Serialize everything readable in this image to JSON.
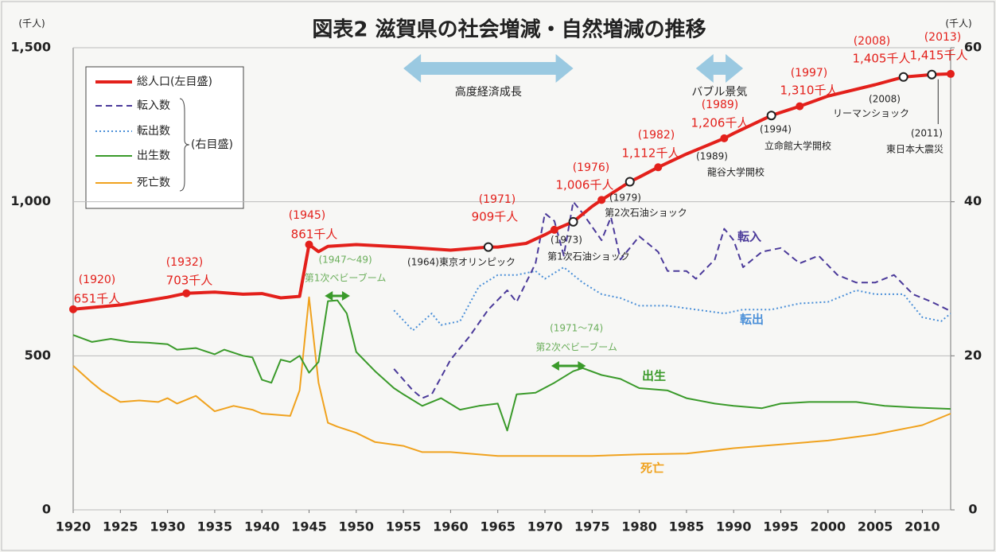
{
  "chart_data": {
    "type": "line",
    "title": "図表2 滋賀県の社会増減・自然増減の推移",
    "ylabel": "(千人)",
    "y2label": "(千人)",
    "xlim": [
      1920,
      2013
    ],
    "xticks": [
      1920,
      1925,
      1930,
      1935,
      1940,
      1945,
      1950,
      1955,
      1960,
      1965,
      1970,
      1975,
      1980,
      1985,
      1990,
      1995,
      2000,
      2005,
      2010
    ],
    "ylim": [
      0,
      1500
    ],
    "yticks": [
      0,
      500,
      {
        "value": 1000,
        "label": "1,000"
      },
      {
        "value": 1500,
        "label": "1,500"
      }
    ],
    "y2lim": [
      0,
      60
    ],
    "y2ticks": [
      0,
      20,
      40,
      60
    ],
    "grid": true,
    "legend": "top-left",
    "right_axis_note": "(右目盛)",
    "series": [
      {
        "name": "総人口(左目盛)",
        "color": "#e3201b",
        "dash": "solid",
        "axis": "y",
        "x": [
          1920,
          1925,
          1930,
          1932,
          1935,
          1938,
          1940,
          1942,
          1944,
          1945,
          1946,
          1947,
          1950,
          1955,
          1960,
          1964,
          1965,
          1968,
          1970,
          1971,
          1973,
          1975,
          1976,
          1979,
          1980,
          1982,
          1985,
          1989,
          1990,
          1994,
          1995,
          1997,
          2000,
          2005,
          2008,
          2010,
          2011,
          2013
        ],
        "values": [
          651,
          665,
          690,
          703,
          707,
          700,
          702,
          688,
          693,
          861,
          838,
          855,
          861,
          853,
          843,
          853,
          853,
          865,
          893,
          909,
          935,
          985,
          1006,
          1065,
          1080,
          1112,
          1155,
          1206,
          1222,
          1280,
          1290,
          1310,
          1343,
          1380,
          1405,
          1410,
          1413,
          1415
        ],
        "value_labels": [
          "651千人",
          null,
          null,
          "703千人",
          null,
          null,
          null,
          null,
          null,
          "861千人",
          null,
          null,
          null,
          null,
          null,
          null,
          null,
          null,
          null,
          "909千人",
          null,
          null,
          "1,006千人",
          null,
          null,
          "1,112千人",
          null,
          "1,206千人",
          null,
          null,
          null,
          "1,310千人",
          null,
          null,
          "1,405千人",
          null,
          null,
          "1,415千人"
        ],
        "year_labels": [
          "(1920)",
          null,
          null,
          "(1932)",
          null,
          null,
          null,
          null,
          null,
          "(1945)",
          null,
          null,
          null,
          null,
          null,
          null,
          null,
          null,
          null,
          "(1971)",
          null,
          null,
          "(1976)",
          null,
          null,
          "(1982)",
          null,
          "(1989)",
          null,
          null,
          null,
          "(1997)",
          null,
          null,
          "(2008)",
          null,
          null,
          "(2013)"
        ]
      },
      {
        "name": "転入数",
        "inline_label": "転入",
        "color": "#4b3a9a",
        "dash": "dashed",
        "axis": "y2",
        "x": [
          1954,
          1956,
          1957,
          1958,
          1960,
          1962,
          1964,
          1966,
          1967,
          1969,
          1970,
          1971,
          1972,
          1973,
          1974,
          1976,
          1977,
          1978,
          1980,
          1982,
          1983,
          1985,
          1986,
          1988,
          1989,
          1990,
          1991,
          1993,
          1995,
          1997,
          1999,
          2001,
          2003,
          2005,
          2007,
          2009,
          2011,
          2013
        ],
        "values": [
          18.3,
          15.5,
          14.5,
          15.0,
          19.5,
          22.5,
          26.0,
          28.5,
          27.0,
          32.0,
          38.5,
          37.5,
          33.0,
          40.0,
          38.5,
          35.0,
          38.0,
          32.5,
          35.5,
          33.5,
          31.0,
          31.0,
          30.0,
          32.5,
          36.5,
          35.0,
          31.5,
          33.5,
          34.0,
          32.0,
          33.0,
          30.5,
          29.5,
          29.5,
          30.5,
          28.0,
          27.0,
          25.8
        ]
      },
      {
        "name": "転出数",
        "inline_label": "転出",
        "color": "#4a8fd8",
        "dash": "dotted",
        "axis": "y2",
        "x": [
          1954,
          1956,
          1958,
          1959,
          1961,
          1963,
          1965,
          1967,
          1969,
          1970,
          1972,
          1974,
          1976,
          1978,
          1980,
          1983,
          1986,
          1989,
          1991,
          1994,
          1997,
          2000,
          2003,
          2005,
          2008,
          2010,
          2012,
          2013
        ],
        "values": [
          25.9,
          23.3,
          25.5,
          24.0,
          24.5,
          29.0,
          30.5,
          30.5,
          31.0,
          30.0,
          31.5,
          29.5,
          28.0,
          27.5,
          26.5,
          26.5,
          26.0,
          25.5,
          26.0,
          26.0,
          26.8,
          27.0,
          28.5,
          28.0,
          28.0,
          25.0,
          24.5,
          25.5
        ]
      },
      {
        "name": "出生数",
        "inline_label": "出生",
        "color": "#3a9a2a",
        "dash": "solid",
        "axis": "y2",
        "x": [
          1920,
          1922,
          1924,
          1926,
          1928,
          1930,
          1931,
          1933,
          1935,
          1936,
          1938,
          1939,
          1940,
          1941,
          1942,
          1943,
          1944,
          1945,
          1946,
          1947,
          1948,
          1949,
          1950,
          1952,
          1954,
          1955,
          1957,
          1959,
          1961,
          1963,
          1965,
          1966,
          1967,
          1969,
          1971,
          1973,
          1974,
          1976,
          1978,
          1980,
          1983,
          1985,
          1988,
          1990,
          1993,
          1995,
          1998,
          2000,
          2003,
          2006,
          2009,
          2013
        ],
        "values": [
          22.7,
          21.8,
          22.2,
          21.8,
          21.7,
          21.5,
          20.8,
          21.0,
          20.2,
          20.8,
          20.0,
          19.8,
          16.9,
          16.5,
          19.5,
          19.2,
          20.0,
          17.8,
          19.2,
          27.1,
          27.2,
          25.5,
          20.5,
          18.0,
          15.8,
          15.0,
          13.5,
          14.5,
          13.0,
          13.5,
          13.8,
          10.3,
          15.0,
          15.2,
          16.5,
          18.0,
          18.4,
          17.5,
          17.0,
          15.8,
          15.5,
          14.5,
          13.8,
          13.5,
          13.2,
          13.8,
          14.0,
          14.0,
          14.0,
          13.5,
          13.3,
          13.1
        ]
      },
      {
        "name": "死亡数",
        "inline_label": "死亡",
        "color": "#f0a21e",
        "dash": "solid",
        "axis": "y2",
        "x": [
          1920,
          1922,
          1923,
          1925,
          1927,
          1929,
          1930,
          1931,
          1933,
          1935,
          1937,
          1939,
          1940,
          1943,
          1944,
          1945,
          1946,
          1947,
          1948,
          1950,
          1952,
          1955,
          1957,
          1960,
          1965,
          1970,
          1975,
          1980,
          1985,
          1990,
          1995,
          2000,
          2005,
          2010,
          2013
        ],
        "values": [
          18.7,
          16.5,
          15.5,
          14.0,
          14.2,
          14.0,
          14.5,
          13.8,
          14.8,
          12.8,
          13.5,
          13.0,
          12.5,
          12.2,
          15.5,
          27.6,
          16.5,
          11.3,
          10.8,
          10.0,
          8.8,
          8.3,
          7.5,
          7.5,
          7.0,
          7.0,
          7.0,
          7.2,
          7.3,
          8.0,
          8.5,
          9.0,
          9.8,
          11.0,
          12.5
        ]
      }
    ],
    "periods": [
      {
        "label": "高度経済成長",
        "start": 1955,
        "end": 1973
      },
      {
        "label": "バブル景気",
        "start": 1986,
        "end": 1991
      }
    ],
    "booms": [
      {
        "range_label": "(1947～49)",
        "label": "第1次ベビーブーム",
        "start": 1947,
        "end": 1949
      },
      {
        "range_label": "(1971～74)",
        "label": "第2次ベビーブーム",
        "start": 1971,
        "end": 1974
      }
    ],
    "events": [
      {
        "x": 1964,
        "label": "(1964)東京オリンピック",
        "marker": true
      },
      {
        "x": 1973,
        "year_label": "(1973)",
        "label": "第1次石油ショック",
        "marker": true
      },
      {
        "x": 1979,
        "year_label": "(1979)",
        "label": "第2次石油ショック",
        "marker": true
      },
      {
        "x": 1989,
        "year_label": "(1989)",
        "label": "龍谷大学開校",
        "marker": false
      },
      {
        "x": 1994,
        "year_label": "(1994)",
        "label": "立命館大学開校",
        "marker": true
      },
      {
        "x": 2008,
        "year_label": "(2008)",
        "label": "リーマンショック",
        "marker": true
      },
      {
        "x": 2011,
        "year_label": "(2011)",
        "label": "東日本大震災",
        "marker": true
      }
    ]
  }
}
